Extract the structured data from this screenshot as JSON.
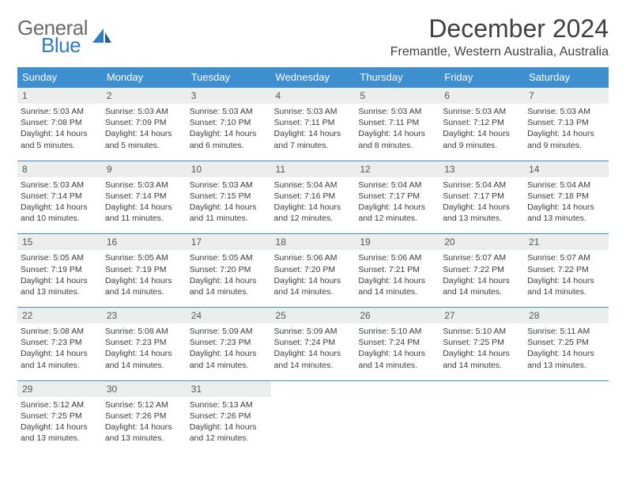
{
  "logo": {
    "word1": "General",
    "word2": "Blue"
  },
  "title": "December 2024",
  "location": "Fremantle, Western Australia, Australia",
  "colors": {
    "header_bg": "#3d8fcf",
    "header_text": "#ffffff",
    "daynum_bg": "#eceded",
    "row_border": "#3d8fcf",
    "logo_blue": "#2f7dc1",
    "text": "#3a3a3a"
  },
  "day_names": [
    "Sunday",
    "Monday",
    "Tuesday",
    "Wednesday",
    "Thursday",
    "Friday",
    "Saturday"
  ],
  "weeks": [
    [
      {
        "n": "1",
        "sr": "Sunrise: 5:03 AM",
        "ss": "Sunset: 7:08 PM",
        "dl": "Daylight: 14 hours and 5 minutes."
      },
      {
        "n": "2",
        "sr": "Sunrise: 5:03 AM",
        "ss": "Sunset: 7:09 PM",
        "dl": "Daylight: 14 hours and 5 minutes."
      },
      {
        "n": "3",
        "sr": "Sunrise: 5:03 AM",
        "ss": "Sunset: 7:10 PM",
        "dl": "Daylight: 14 hours and 6 minutes."
      },
      {
        "n": "4",
        "sr": "Sunrise: 5:03 AM",
        "ss": "Sunset: 7:11 PM",
        "dl": "Daylight: 14 hours and 7 minutes."
      },
      {
        "n": "5",
        "sr": "Sunrise: 5:03 AM",
        "ss": "Sunset: 7:11 PM",
        "dl": "Daylight: 14 hours and 8 minutes."
      },
      {
        "n": "6",
        "sr": "Sunrise: 5:03 AM",
        "ss": "Sunset: 7:12 PM",
        "dl": "Daylight: 14 hours and 9 minutes."
      },
      {
        "n": "7",
        "sr": "Sunrise: 5:03 AM",
        "ss": "Sunset: 7:13 PM",
        "dl": "Daylight: 14 hours and 9 minutes."
      }
    ],
    [
      {
        "n": "8",
        "sr": "Sunrise: 5:03 AM",
        "ss": "Sunset: 7:14 PM",
        "dl": "Daylight: 14 hours and 10 minutes."
      },
      {
        "n": "9",
        "sr": "Sunrise: 5:03 AM",
        "ss": "Sunset: 7:14 PM",
        "dl": "Daylight: 14 hours and 11 minutes."
      },
      {
        "n": "10",
        "sr": "Sunrise: 5:03 AM",
        "ss": "Sunset: 7:15 PM",
        "dl": "Daylight: 14 hours and 11 minutes."
      },
      {
        "n": "11",
        "sr": "Sunrise: 5:04 AM",
        "ss": "Sunset: 7:16 PM",
        "dl": "Daylight: 14 hours and 12 minutes."
      },
      {
        "n": "12",
        "sr": "Sunrise: 5:04 AM",
        "ss": "Sunset: 7:17 PM",
        "dl": "Daylight: 14 hours and 12 minutes."
      },
      {
        "n": "13",
        "sr": "Sunrise: 5:04 AM",
        "ss": "Sunset: 7:17 PM",
        "dl": "Daylight: 14 hours and 13 minutes."
      },
      {
        "n": "14",
        "sr": "Sunrise: 5:04 AM",
        "ss": "Sunset: 7:18 PM",
        "dl": "Daylight: 14 hours and 13 minutes."
      }
    ],
    [
      {
        "n": "15",
        "sr": "Sunrise: 5:05 AM",
        "ss": "Sunset: 7:19 PM",
        "dl": "Daylight: 14 hours and 13 minutes."
      },
      {
        "n": "16",
        "sr": "Sunrise: 5:05 AM",
        "ss": "Sunset: 7:19 PM",
        "dl": "Daylight: 14 hours and 14 minutes."
      },
      {
        "n": "17",
        "sr": "Sunrise: 5:05 AM",
        "ss": "Sunset: 7:20 PM",
        "dl": "Daylight: 14 hours and 14 minutes."
      },
      {
        "n": "18",
        "sr": "Sunrise: 5:06 AM",
        "ss": "Sunset: 7:20 PM",
        "dl": "Daylight: 14 hours and 14 minutes."
      },
      {
        "n": "19",
        "sr": "Sunrise: 5:06 AM",
        "ss": "Sunset: 7:21 PM",
        "dl": "Daylight: 14 hours and 14 minutes."
      },
      {
        "n": "20",
        "sr": "Sunrise: 5:07 AM",
        "ss": "Sunset: 7:22 PM",
        "dl": "Daylight: 14 hours and 14 minutes."
      },
      {
        "n": "21",
        "sr": "Sunrise: 5:07 AM",
        "ss": "Sunset: 7:22 PM",
        "dl": "Daylight: 14 hours and 14 minutes."
      }
    ],
    [
      {
        "n": "22",
        "sr": "Sunrise: 5:08 AM",
        "ss": "Sunset: 7:23 PM",
        "dl": "Daylight: 14 hours and 14 minutes."
      },
      {
        "n": "23",
        "sr": "Sunrise: 5:08 AM",
        "ss": "Sunset: 7:23 PM",
        "dl": "Daylight: 14 hours and 14 minutes."
      },
      {
        "n": "24",
        "sr": "Sunrise: 5:09 AM",
        "ss": "Sunset: 7:23 PM",
        "dl": "Daylight: 14 hours and 14 minutes."
      },
      {
        "n": "25",
        "sr": "Sunrise: 5:09 AM",
        "ss": "Sunset: 7:24 PM",
        "dl": "Daylight: 14 hours and 14 minutes."
      },
      {
        "n": "26",
        "sr": "Sunrise: 5:10 AM",
        "ss": "Sunset: 7:24 PM",
        "dl": "Daylight: 14 hours and 14 minutes."
      },
      {
        "n": "27",
        "sr": "Sunrise: 5:10 AM",
        "ss": "Sunset: 7:25 PM",
        "dl": "Daylight: 14 hours and 14 minutes."
      },
      {
        "n": "28",
        "sr": "Sunrise: 5:11 AM",
        "ss": "Sunset: 7:25 PM",
        "dl": "Daylight: 14 hours and 13 minutes."
      }
    ],
    [
      {
        "n": "29",
        "sr": "Sunrise: 5:12 AM",
        "ss": "Sunset: 7:25 PM",
        "dl": "Daylight: 14 hours and 13 minutes."
      },
      {
        "n": "30",
        "sr": "Sunrise: 5:12 AM",
        "ss": "Sunset: 7:26 PM",
        "dl": "Daylight: 14 hours and 13 minutes."
      },
      {
        "n": "31",
        "sr": "Sunrise: 5:13 AM",
        "ss": "Sunset: 7:26 PM",
        "dl": "Daylight: 14 hours and 12 minutes."
      },
      null,
      null,
      null,
      null
    ]
  ]
}
